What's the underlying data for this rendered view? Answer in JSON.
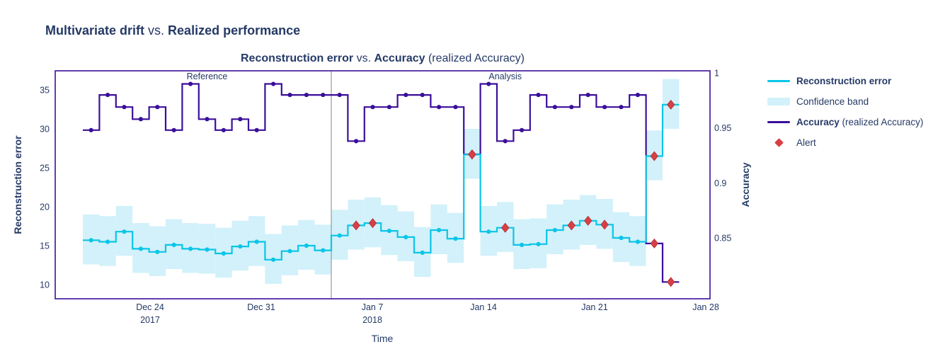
{
  "figure": {
    "title_part1": "Multivariate drift",
    "title_sep": " vs. ",
    "title_part2": "Realized performance"
  },
  "chart_header": {
    "part1": "Reconstruction error",
    "sep": " vs. ",
    "part2": "Accuracy",
    "suffix": " (realized Accuracy)"
  },
  "legend": {
    "items": [
      {
        "label": "Reconstruction error",
        "marker": "line"
      },
      {
        "label": "Confidence band",
        "marker": "band"
      },
      {
        "label": "Accuracy",
        "label_suffix": " (realized Accuracy)",
        "marker": "line"
      },
      {
        "label": "Alert",
        "marker": "diamond"
      }
    ]
  },
  "chart_data": {
    "type": "line",
    "subtype": "step",
    "title": "Reconstruction error vs. Accuracy (realized Accuracy)",
    "xlabel": "Time",
    "ylabel_left": "Reconstruction error",
    "ylabel_right": "Accuracy",
    "grid": false,
    "legend_position": "right",
    "x_ticks": [
      {
        "label": "Dec 24",
        "sublabel": "2017"
      },
      {
        "label": "Dec 31",
        "sublabel": ""
      },
      {
        "label": "Jan 7",
        "sublabel": "2018"
      },
      {
        "label": "Jan 14",
        "sublabel": ""
      },
      {
        "label": "Jan 21",
        "sublabel": ""
      },
      {
        "label": "Jan 28",
        "sublabel": ""
      }
    ],
    "y_ticks_left": [
      35,
      30,
      25,
      20,
      15,
      10
    ],
    "y_ticks_right": [
      "1",
      "0.95",
      "0.9",
      "0.85"
    ],
    "y_left_axis_range_approx": [
      8.5,
      37.5
    ],
    "y_right_axis_range_approx": [
      0.795,
      1.005
    ],
    "periods": [
      {
        "name": "Reference",
        "chunks": 15
      },
      {
        "name": "Analysis",
        "chunks": 21
      }
    ],
    "series": [
      {
        "name": "Reconstruction error",
        "axis": "left",
        "color": "#0bc5e7",
        "values": [
          15.7,
          15.5,
          16.8,
          14.6,
          14.2,
          15.1,
          14.6,
          14.5,
          14.0,
          14.9,
          15.5,
          13.2,
          14.3,
          15.0,
          14.4,
          16.3,
          17.6,
          17.9,
          16.9,
          16.1,
          14.1,
          17.0,
          15.9,
          26.7,
          16.8,
          17.3,
          15.1,
          15.2,
          17.0,
          17.6,
          18.2,
          17.7,
          16.0,
          15.5,
          26.5,
          33.1
        ],
        "alert_indices": [
          16,
          17,
          23,
          25,
          29,
          30,
          31,
          34,
          35
        ]
      },
      {
        "name": "Accuracy (realized Accuracy)",
        "axis": "right",
        "color": "#3b0e9b",
        "values": [
          0.948,
          0.98,
          0.969,
          0.958,
          0.969,
          0.948,
          0.99,
          0.958,
          0.948,
          0.958,
          0.948,
          0.99,
          0.98,
          0.98,
          0.98,
          0.98,
          0.938,
          0.969,
          0.969,
          0.98,
          0.98,
          0.969,
          0.969,
          0.926,
          0.99,
          0.938,
          0.948,
          0.98,
          0.969,
          0.969,
          0.98,
          0.969,
          0.969,
          0.98,
          0.845,
          0.81
        ],
        "alert_indices": [
          23,
          34,
          35
        ]
      }
    ],
    "confidence_band": {
      "applies_to": "Reconstruction error",
      "upper_margin": 3.3,
      "lower_margin": 3.1,
      "color": "#d2f1fa"
    },
    "alert_marker_color": "#d64045",
    "colors": {
      "text": "#253a66",
      "divider": "#9a9a9a",
      "plot_border": "#3b0e9b",
      "reconstruction_line": "#0bc5e7",
      "accuracy_line": "#3b0e9b",
      "band_fill": "#d2f1fa",
      "alert_red": "#d64045"
    }
  }
}
